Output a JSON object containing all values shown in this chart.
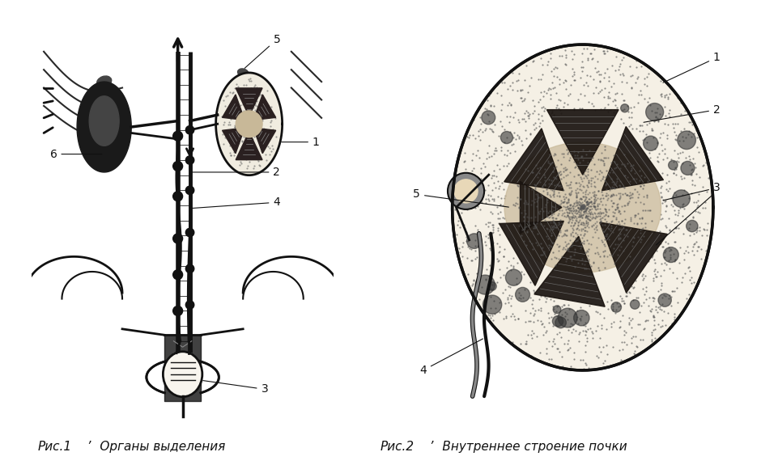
{
  "bg_color": "#ffffff",
  "fig_width": 9.4,
  "fig_height": 5.8,
  "label_color": "#111111",
  "label_fontsize": 10,
  "caption_fontsize": 11,
  "line_color": "#111111",
  "caption1_text": "Рис.1",
  "caption1_desc": "  Органы выделения",
  "caption2_text": "Рис.2",
  "caption2_desc": "  Внутреннее строение почки"
}
